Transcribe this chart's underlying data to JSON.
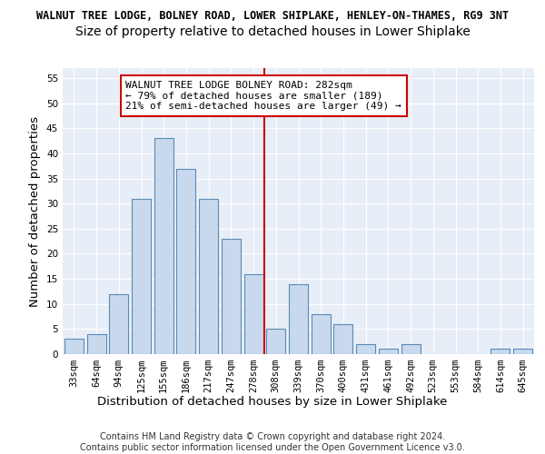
{
  "title_line1": "WALNUT TREE LODGE, BOLNEY ROAD, LOWER SHIPLAKE, HENLEY-ON-THAMES, RG9 3NT",
  "title_line2": "Size of property relative to detached houses in Lower Shiplake",
  "xlabel": "Distribution of detached houses by size in Lower Shiplake",
  "ylabel": "Number of detached properties",
  "categories": [
    "33sqm",
    "64sqm",
    "94sqm",
    "125sqm",
    "155sqm",
    "186sqm",
    "217sqm",
    "247sqm",
    "278sqm",
    "308sqm",
    "339sqm",
    "370sqm",
    "400sqm",
    "431sqm",
    "461sqm",
    "492sqm",
    "523sqm",
    "553sqm",
    "584sqm",
    "614sqm",
    "645sqm"
  ],
  "values": [
    3,
    4,
    12,
    31,
    43,
    37,
    31,
    23,
    16,
    5,
    14,
    8,
    6,
    2,
    1,
    2,
    0,
    0,
    0,
    1,
    1
  ],
  "bar_color": "#c9d9ed",
  "bar_edge_color": "#5a8ab5",
  "vline_color": "#cc0000",
  "annotation_line1": "WALNUT TREE LODGE BOLNEY ROAD: 282sqm",
  "annotation_line2": "← 79% of detached houses are smaller (189)",
  "annotation_line3": "21% of semi-detached houses are larger (49) →",
  "annotation_box_color": "#cc0000",
  "ylim": [
    0,
    57
  ],
  "yticks": [
    0,
    5,
    10,
    15,
    20,
    25,
    30,
    35,
    40,
    45,
    50,
    55
  ],
  "background_color": "#e8eef7",
  "grid_color": "#ffffff",
  "footer_line1": "Contains HM Land Registry data © Crown copyright and database right 2024.",
  "footer_line2": "Contains public sector information licensed under the Open Government Licence v3.0.",
  "title_fontsize": 8.5,
  "subtitle_fontsize": 10,
  "axis_label_fontsize": 9.5,
  "tick_fontsize": 7.5,
  "annotation_fontsize": 8,
  "footer_fontsize": 7
}
